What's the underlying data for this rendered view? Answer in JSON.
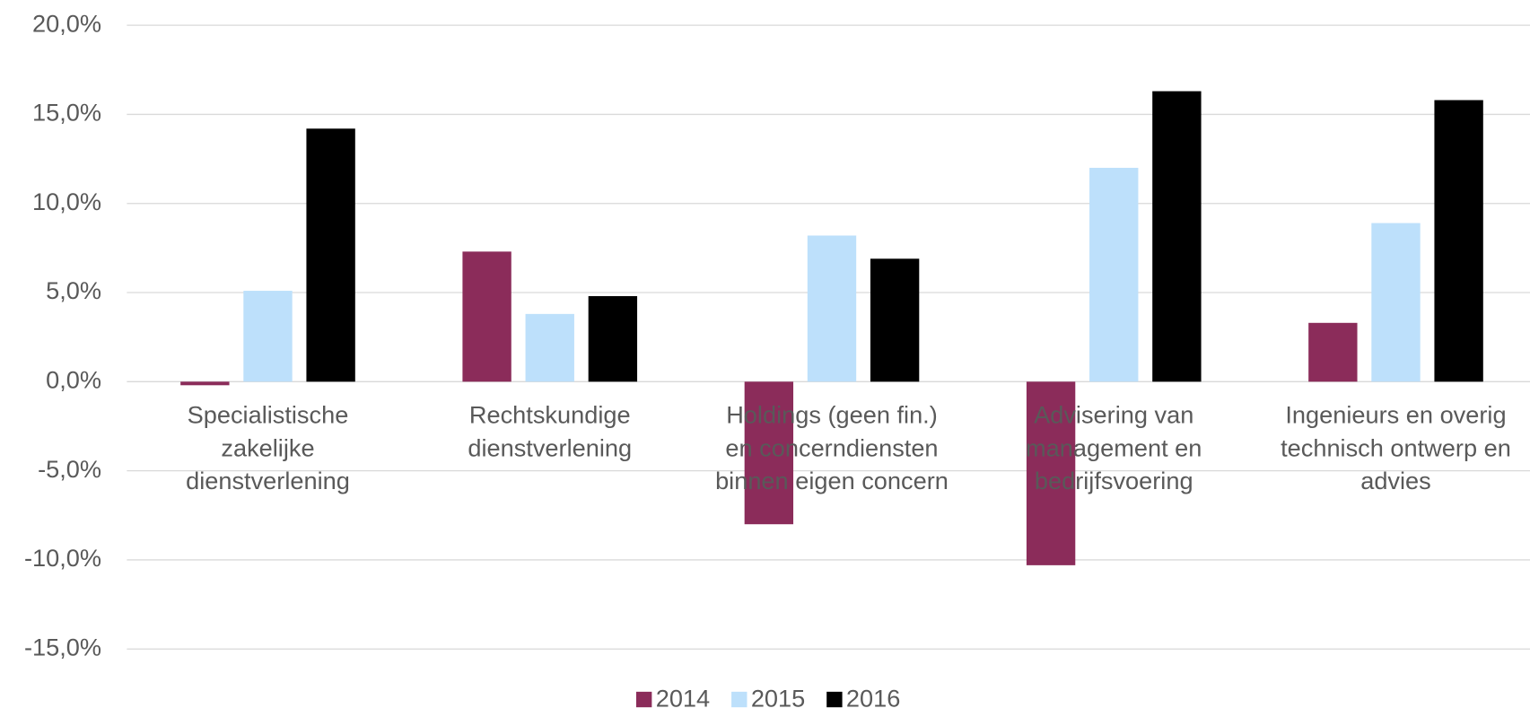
{
  "chart_data": {
    "type": "bar",
    "categories": [
      [
        "Specialistische",
        "zakelijke",
        "dienstverlening"
      ],
      [
        "Rechtskundige",
        "dienstverlening"
      ],
      [
        "Holdings (geen fin.)",
        "en concerndiensten",
        "binnen eigen concern"
      ],
      [
        "Advisering van",
        "management en",
        "bedrijfsvoering"
      ],
      [
        "Ingenieurs en overig",
        "technisch ontwerp en",
        "advies"
      ]
    ],
    "series": [
      {
        "name": "2014",
        "color": "#8b2c5a",
        "values": [
          -0.2,
          7.3,
          -8.0,
          -10.3,
          3.3
        ]
      },
      {
        "name": "2015",
        "color": "#bde0fb",
        "values": [
          5.1,
          3.8,
          8.2,
          12.0,
          8.9
        ]
      },
      {
        "name": "2016",
        "color": "#000000",
        "values": [
          14.2,
          4.8,
          6.9,
          16.3,
          15.8
        ]
      }
    ],
    "ylim": [
      -15,
      20
    ],
    "yticks": [
      {
        "value": -15,
        "label": "-15,0%"
      },
      {
        "value": -10,
        "label": "-10,0%"
      },
      {
        "value": -5,
        "label": "-5,0%"
      },
      {
        "value": 0,
        "label": "0,0%"
      },
      {
        "value": 5,
        "label": "5,0%"
      },
      {
        "value": 10,
        "label": "10,0%"
      },
      {
        "value": 15,
        "label": "15,0%"
      },
      {
        "value": 20,
        "label": "20,0%"
      }
    ],
    "grid": true,
    "legend": "bottom"
  }
}
